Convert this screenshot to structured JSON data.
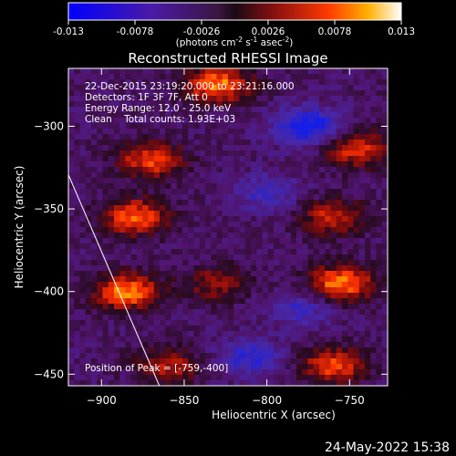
{
  "colorbar": {
    "ticks": [
      "-0.013",
      "-0.0078",
      "-0.0026",
      "0.0026",
      "0.0078",
      "0.013"
    ],
    "tick_values": [
      -0.013,
      -0.0078,
      -0.0026,
      0.0026,
      0.0078,
      0.013
    ],
    "range": [
      -0.013,
      0.013
    ],
    "unit_label": "(photons cm",
    "unit_sup1": "-2",
    "unit_mid": " s",
    "unit_sup2": "-1",
    "unit_tail": " asec",
    "unit_sup3": "-2",
    "unit_close": ")"
  },
  "chart_data": {
    "type": "heatmap",
    "title": "Reconstructed RHESSI Image",
    "xlabel": "Heliocentric X (arcsec)",
    "ylabel": "Heliocentric Y (arcsec)",
    "xlim": [
      -920,
      -727
    ],
    "ylim": [
      -457,
      -265
    ],
    "x_ticks": [
      -900,
      -850,
      -800,
      -750
    ],
    "x_tick_labels": [
      "−900",
      "−850",
      "−800",
      "−750"
    ],
    "y_ticks": [
      -300,
      -350,
      -400,
      -450
    ],
    "y_tick_labels": [
      "−300",
      "−350",
      "−400",
      "−450"
    ],
    "info_lines": [
      "22-Dec-2015 23:19:20.000 to 23:21:16.000",
      "Detectors: 1F 3F 7F, Att 0",
      "Energy Range: 12.0 - 25.0 keV",
      "Clean    Total counts: 1.93E+03"
    ],
    "peak_text": "Position of Peak = [-759,-400]",
    "peak": [
      -759,
      -400
    ],
    "limb_line": [
      [
        -921,
        -327
      ],
      [
        -865,
        -457
      ]
    ],
    "sources": [
      {
        "x": -830,
        "y": -275,
        "intensity": 0.013
      },
      {
        "x": -870,
        "y": -320,
        "intensity": 0.011
      },
      {
        "x": -745,
        "y": -314,
        "intensity": 0.01
      },
      {
        "x": -880,
        "y": -355,
        "intensity": 0.012
      },
      {
        "x": -760,
        "y": -355,
        "intensity": 0.009
      },
      {
        "x": -885,
        "y": -400,
        "intensity": 0.013
      },
      {
        "x": -755,
        "y": -395,
        "intensity": 0.013
      },
      {
        "x": -760,
        "y": -445,
        "intensity": 0.011
      },
      {
        "x": -830,
        "y": -395,
        "intensity": 0.007
      },
      {
        "x": -860,
        "y": -445,
        "intensity": 0.008
      }
    ],
    "negatives": [
      {
        "x": -775,
        "y": -300,
        "intensity": -0.011
      },
      {
        "x": -800,
        "y": -340,
        "intensity": -0.006
      },
      {
        "x": -810,
        "y": -440,
        "intensity": -0.007
      },
      {
        "x": -780,
        "y": -410,
        "intensity": -0.006
      }
    ]
  },
  "timestamp": "24-May-2022 15:38"
}
